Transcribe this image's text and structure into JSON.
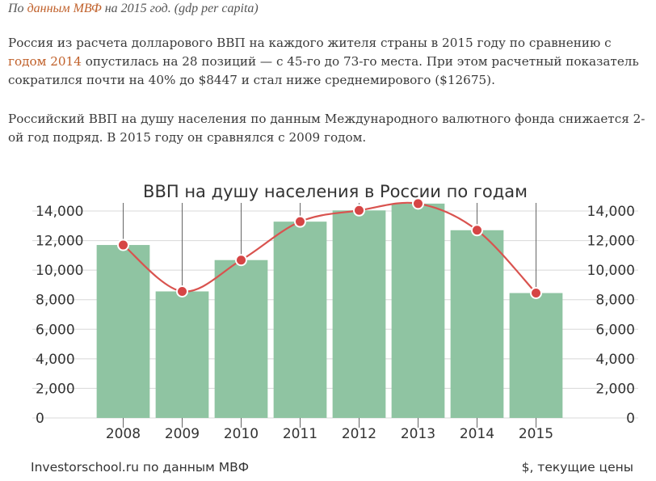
{
  "article": {
    "source_prefix": "По ",
    "source_link": "данным МВФ",
    "source_suffix": " на 2015 год. (gdp per capita)",
    "p1_before": "Россия из расчета долларового ВВП на каждого жителя страны в 2015 году по сравнению с ",
    "p1_link": "годом 2014",
    "p1_after": " опустилась на 28 позиций — с 45-го до 73-го места. При этом расчетный показатель сократился почти на 40% до $8447 и стал ниже среднемирового ($12675).",
    "p2": "Российский ВВП на душу населения по данным Международного валютного фонда снижается 2-ой год подряд. В 2015 году он сравнялся с 2009 годом."
  },
  "colors": {
    "bar": "#8fc4a2",
    "line": "#d9534f",
    "point": "#d64545",
    "grid": "#d8d8d8",
    "text": "#444444",
    "link": "#c0602a"
  },
  "chart_data": {
    "type": "bar",
    "title": "ВВП на душу населения в России по годам",
    "categories": [
      "2008",
      "2009",
      "2010",
      "2011",
      "2012",
      "2013",
      "2014",
      "2015"
    ],
    "series": [
      {
        "values": [
          11700,
          8560,
          10680,
          13280,
          14040,
          14500,
          12700,
          8450
        ]
      }
    ],
    "line_values": [
      11700,
      8560,
      10680,
      13280,
      14040,
      14500,
      12700,
      8450
    ],
    "ylim": [
      0,
      14000
    ],
    "yticks": [
      "0",
      "2,000",
      "4,000",
      "6,000",
      "8,000",
      "10,000",
      "12,000",
      "14,000"
    ],
    "footer_left": "Investorschool.ru по данным МВФ",
    "footer_right": "$, текущие цены",
    "grid": true
  }
}
